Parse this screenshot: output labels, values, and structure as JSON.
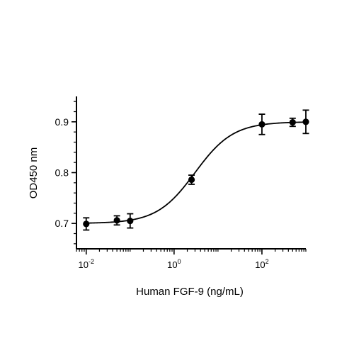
{
  "chart_data": {
    "type": "scatter",
    "title": "",
    "xlabel": "Human FGF-9 (ng/mL)",
    "ylabel": "OD450 nm",
    "xscale": "log",
    "xlim": [
      0.006,
      1000
    ],
    "ylim": [
      0.65,
      0.95
    ],
    "grid": false,
    "legend": "none",
    "x_ticks": [
      {
        "value": 0.01,
        "base": "10",
        "exp": "-2"
      },
      {
        "value": 1,
        "base": "10",
        "exp": "0"
      },
      {
        "value": 100,
        "base": "10",
        "exp": "2"
      }
    ],
    "y_ticks": [
      {
        "value": 0.7,
        "label": "0.7"
      },
      {
        "value": 0.8,
        "label": "0.8"
      },
      {
        "value": 0.9,
        "label": "0.9"
      }
    ],
    "series": [
      {
        "x": [
          0.01,
          0.05,
          0.1,
          2.5,
          100,
          500,
          1000
        ],
        "y": [
          0.699,
          0.706,
          0.705,
          0.786,
          0.895,
          0.899,
          0.9
        ],
        "error": [
          0.012,
          0.009,
          0.014,
          0.009,
          0.02,
          0.008,
          0.023
        ],
        "color": "#000000"
      }
    ],
    "fit_curve": {
      "model": "4PL",
      "bottom": 0.7,
      "top": 0.9,
      "ec50": 3.0,
      "hill": 1.0,
      "color": "#000000"
    }
  }
}
